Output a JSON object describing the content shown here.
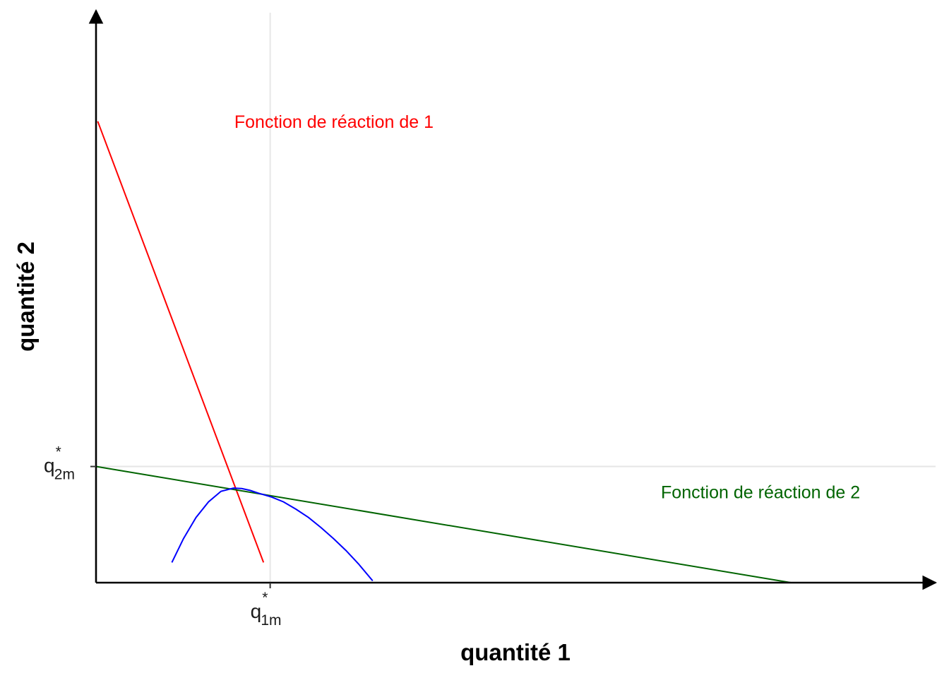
{
  "chart_data": {
    "type": "line",
    "title": "",
    "xlabel": "quantité 1",
    "ylabel": "quantité 2",
    "xlim": [
      0,
      100
    ],
    "ylim": [
      0,
      100
    ],
    "grid": "reference lines only",
    "x_ticks": [
      {
        "value": 20.9,
        "main": "q",
        "sub": "1m",
        "sup": "*"
      }
    ],
    "y_ticks": [
      {
        "value": 25.3,
        "main": "q",
        "sub": "2m",
        "sup": "*"
      }
    ],
    "series": [
      {
        "name": "Fonction de réaction de 1",
        "color": "#ff0000",
        "kind": "line",
        "x": [
          0.2,
          20.1
        ],
        "y": [
          100.5,
          4.4
        ]
      },
      {
        "name": "Fonction de réaction de 2",
        "color": "#006400",
        "kind": "line",
        "x": [
          0.0,
          83.4
        ],
        "y": [
          25.3,
          0.0
        ]
      },
      {
        "name": "",
        "color": "#0000ff",
        "kind": "curve",
        "x": [
          9.1,
          10.5,
          12.0,
          13.5,
          15.0,
          16.5,
          17.5,
          18.5,
          19.5,
          21.0,
          22.5,
          24.0,
          25.5,
          27.0,
          28.5,
          30.0,
          31.5,
          33.2
        ],
        "y": [
          4.4,
          9.6,
          14.2,
          17.6,
          19.9,
          20.6,
          20.5,
          20.1,
          19.5,
          18.7,
          17.6,
          16.0,
          14.2,
          12.0,
          9.6,
          7.0,
          4.1,
          0.4
        ]
      }
    ],
    "annotations": [
      {
        "text": "Fonction de réaction de 1",
        "color": "#ff0000",
        "x": 16.6,
        "y": 100.5
      },
      {
        "text": "Fonction de réaction de 2",
        "color": "#006400",
        "x": 67.8,
        "y": 19.8
      }
    ]
  }
}
